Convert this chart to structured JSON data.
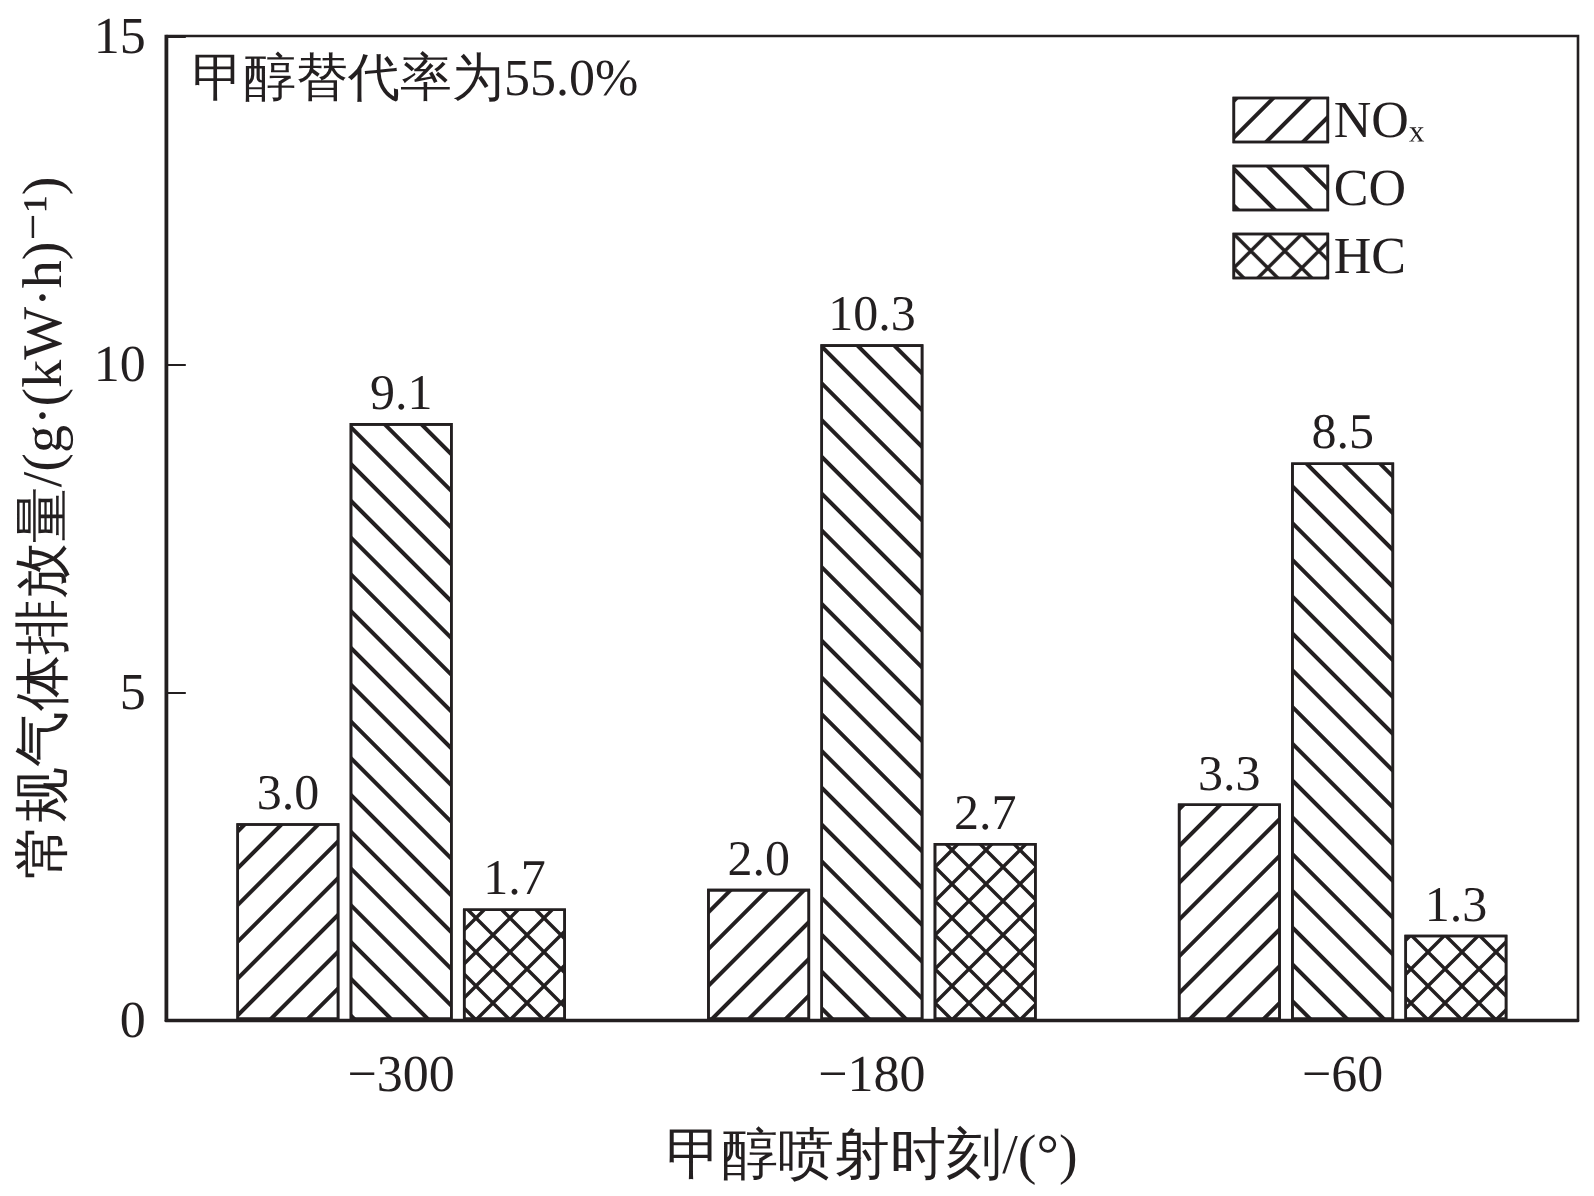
{
  "chart_data": {
    "type": "bar",
    "categories": [
      "−300",
      "−180",
      "−60"
    ],
    "series": [
      {
        "name": "NOₓ",
        "values": [
          3.0,
          2.0,
          3.3
        ],
        "value_labels": [
          "3.0",
          "2.0",
          "3.3"
        ]
      },
      {
        "name": "CO",
        "values": [
          9.1,
          10.3,
          8.5
        ],
        "value_labels": [
          "9.1",
          "10.3",
          "8.5"
        ]
      },
      {
        "name": "HC",
        "values": [
          1.7,
          2.7,
          1.3
        ],
        "value_labels": [
          "1.7",
          "2.7",
          "1.3"
        ]
      }
    ],
    "xlabel": "甲醇喷射时刻/(°)",
    "ylabel": "常规气体排放量/(g·(kW·h)⁻¹)",
    "ylim": [
      0,
      15
    ],
    "yticks": [
      0,
      5,
      10,
      15
    ],
    "legend": "top right",
    "grid": false,
    "annotations": [
      "甲醇替代率为55.0%"
    ]
  }
}
